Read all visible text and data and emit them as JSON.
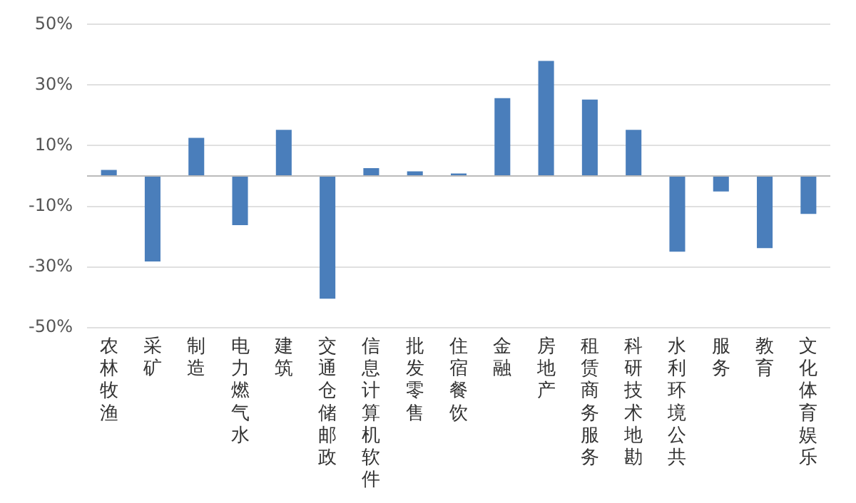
{
  "chart_data": {
    "type": "bar",
    "categories": [
      "农林牧渔",
      "采矿",
      "制造",
      "电力燃气水",
      "建筑",
      "交通仓储邮政",
      "信息计算机软件",
      "批发零售",
      "住宿餐饮",
      "金融",
      "房地产",
      "租赁商务服务",
      "科研技术地勘",
      "水利环境公共",
      "服务",
      "教育",
      "文化体育娱乐"
    ],
    "values": [
      2,
      -28.2,
      12.6,
      -16.2,
      15.2,
      -40.5,
      2.6,
      1.5,
      0.8,
      25.7,
      38,
      25.2,
      15.2,
      -25,
      -5.1,
      -23.8,
      -12.5
    ],
    "color": "#4a7ebb",
    "ylim": [
      -50,
      50
    ],
    "yticks": [
      {
        "value": -50,
        "label": "-50%"
      },
      {
        "value": -30,
        "label": "-30%"
      },
      {
        "value": -10,
        "label": "-10%"
      },
      {
        "value": 0,
        "label": null
      },
      {
        "value": 10,
        "label": "10%"
      },
      {
        "value": 30,
        "label": "30%"
      },
      {
        "value": 50,
        "label": "50%"
      }
    ],
    "grid": "y",
    "legend": false
  }
}
